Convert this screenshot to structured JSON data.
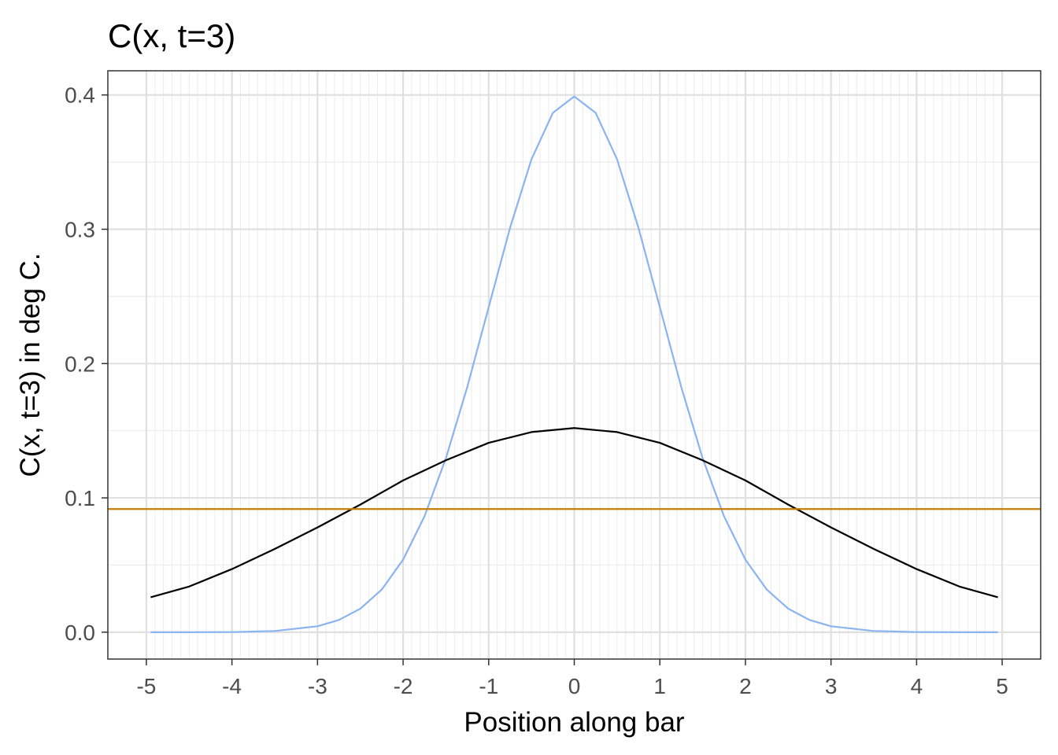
{
  "chart_data": {
    "type": "line",
    "title": "C(x, t=3)",
    "xlabel": "Position along bar",
    "ylabel": "C(x, t=3) in deg C.",
    "xlim": [
      -5.45,
      5.45
    ],
    "ylim": [
      -0.02,
      0.418
    ],
    "x_ticks": [
      -5,
      -4,
      -3,
      -2,
      -1,
      0,
      1,
      2,
      3,
      4,
      5
    ],
    "x_tick_labels": [
      "-5",
      "-4",
      "-3",
      "-2",
      "-1",
      "0",
      "1",
      "2",
      "3",
      "4",
      "5"
    ],
    "y_ticks": [
      0.0,
      0.1,
      0.2,
      0.3,
      0.4
    ],
    "y_tick_labels": [
      "0.0",
      "0.1",
      "0.2",
      "0.3",
      "0.4"
    ],
    "grid": true,
    "legend": "none",
    "series": [
      {
        "color": "#8ab4f0",
        "x": [
          -4.95,
          -4.5,
          -4.0,
          -3.5,
          -3.0,
          -2.75,
          -2.5,
          -2.25,
          -2.0,
          -1.75,
          -1.5,
          -1.25,
          -1.0,
          -0.75,
          -0.5,
          -0.25,
          0.0,
          0.25,
          0.5,
          0.75,
          1.0,
          1.25,
          1.5,
          1.75,
          2.0,
          2.25,
          2.5,
          2.75,
          3.0,
          3.5,
          4.0,
          4.5,
          4.95
        ],
        "y": [
          0.0,
          0.0,
          0.0001,
          0.0009,
          0.0044,
          0.0091,
          0.0175,
          0.0317,
          0.054,
          0.0863,
          0.1295,
          0.1826,
          0.242,
          0.3011,
          0.3521,
          0.3867,
          0.3989,
          0.3867,
          0.3521,
          0.3011,
          0.242,
          0.1826,
          0.1295,
          0.0863,
          0.054,
          0.0317,
          0.0175,
          0.0091,
          0.0044,
          0.0009,
          0.0001,
          0.0,
          0.0
        ]
      },
      {
        "color": "#000000",
        "x": [
          -4.95,
          -4.5,
          -4.0,
          -3.5,
          -3.0,
          -2.5,
          -2.0,
          -1.5,
          -1.0,
          -0.5,
          0.0,
          0.5,
          1.0,
          1.5,
          2.0,
          2.5,
          3.0,
          3.5,
          4.0,
          4.5,
          4.95
        ],
        "y": [
          0.026,
          0.034,
          0.047,
          0.062,
          0.078,
          0.095,
          0.113,
          0.128,
          0.141,
          0.149,
          0.152,
          0.149,
          0.141,
          0.128,
          0.113,
          0.095,
          0.078,
          0.062,
          0.047,
          0.034,
          0.026
        ]
      },
      {
        "color": "#c77c00",
        "x": [
          -5.45,
          5.45
        ],
        "y": [
          0.0917,
          0.0917
        ]
      }
    ]
  }
}
